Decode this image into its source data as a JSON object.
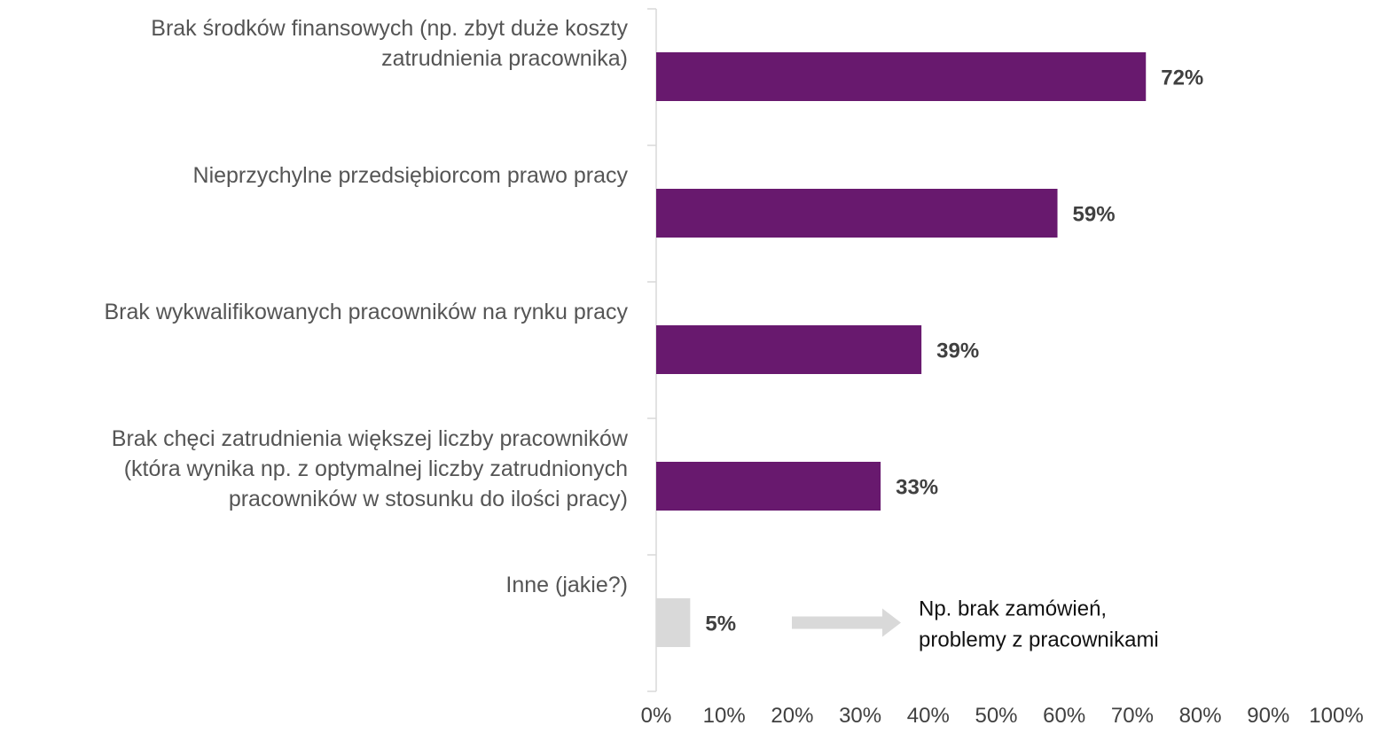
{
  "chart_data": {
    "type": "bar",
    "orientation": "horizontal",
    "categories": [
      [
        "Brak środków finansowych (np. zbyt duże koszty",
        "zatrudnienia pracownika)"
      ],
      [
        "Nieprzychylne przedsiębiorcom prawo pracy"
      ],
      [
        "Brak wykwalifikowanych pracowników na rynku pracy"
      ],
      [
        "Brak chęci zatrudnienia większej liczby pracowników",
        "(która wynika np. z optymalnej liczby zatrudnionych",
        "pracowników w stosunku do ilości pracy)"
      ],
      [
        "Inne (jakie?)"
      ]
    ],
    "values": [
      72,
      59,
      39,
      33,
      5
    ],
    "value_labels": [
      "72%",
      "59%",
      "39%",
      "33%",
      "5%"
    ],
    "bar_colors": [
      "#68196e",
      "#68196e",
      "#68196e",
      "#68196e",
      "#d9d9d9"
    ],
    "xlim": [
      0,
      100
    ],
    "x_ticks": [
      "0%",
      "10%",
      "20%",
      "30%",
      "40%",
      "50%",
      "60%",
      "70%",
      "80%",
      "90%",
      "100%"
    ],
    "grid": false,
    "annotation": {
      "text_lines": [
        "Np. brak zamówień,",
        "problemy z pracownikami"
      ],
      "icon": "right-arrow-icon",
      "color": "#d9d9d9"
    },
    "title": "",
    "xlabel": "",
    "ylabel": ""
  }
}
